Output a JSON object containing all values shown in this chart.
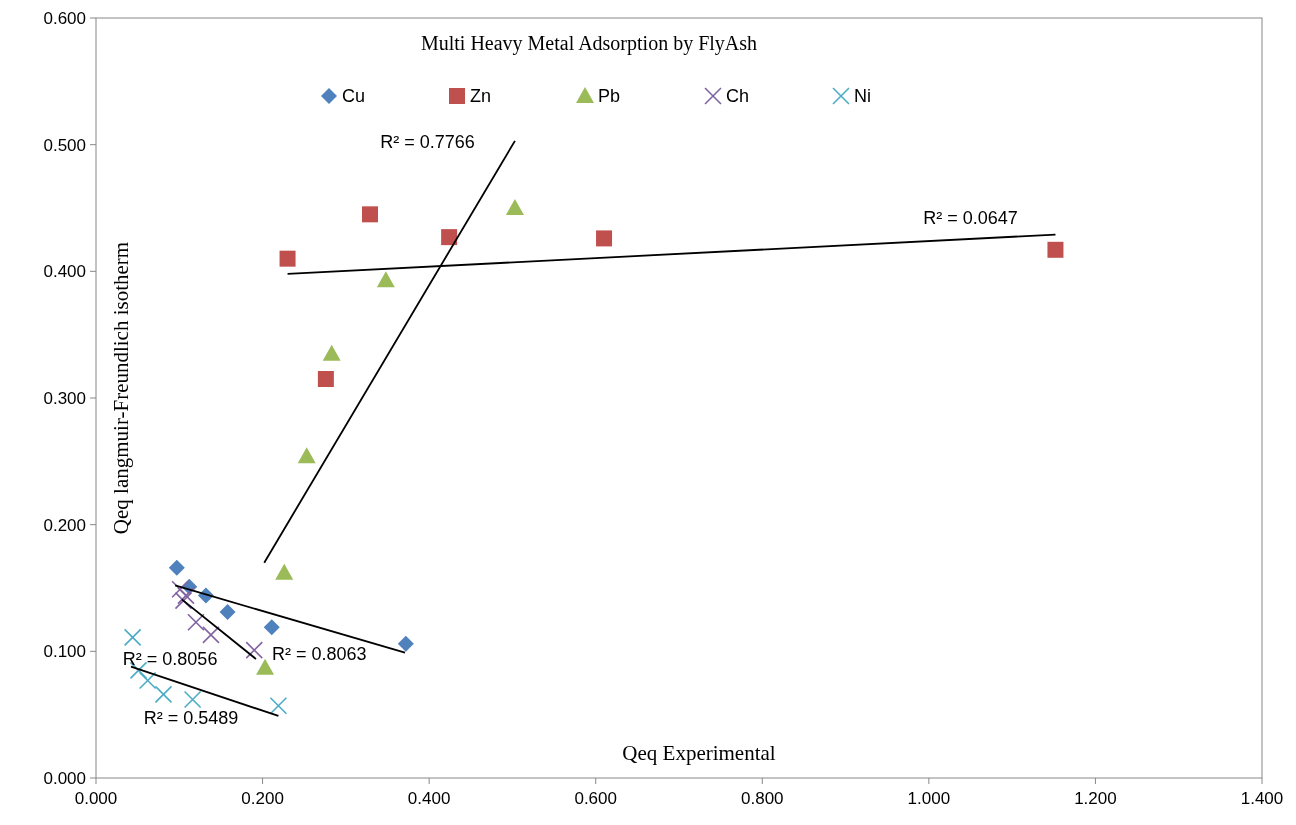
{
  "chart_data": {
    "type": "scatter",
    "title": "Multi Heavy Metal Adsorption by FlyAsh",
    "xlabel": "Qeq Experimental",
    "ylabel": "Qeq langmuir-Freundlich isotherm",
    "xlim": [
      0,
      1.4
    ],
    "ylim": [
      0,
      0.6
    ],
    "xticks": [
      {
        "value": 0,
        "label": "0.000"
      },
      {
        "value": 0.2,
        "label": "0.200"
      },
      {
        "value": 0.4,
        "label": "0.400"
      },
      {
        "value": 0.6,
        "label": "0.600"
      },
      {
        "value": 0.8,
        "label": "0.800"
      },
      {
        "value": 1.0,
        "label": "1.000"
      },
      {
        "value": 1.2,
        "label": "1.200"
      },
      {
        "value": 1.4,
        "label": "1.400"
      }
    ],
    "yticks": [
      {
        "value": 0,
        "label": "0.000"
      },
      {
        "value": 0.1,
        "label": "0.100"
      },
      {
        "value": 0.2,
        "label": "0.200"
      },
      {
        "value": 0.3,
        "label": "0.300"
      },
      {
        "value": 0.4,
        "label": "0.400"
      },
      {
        "value": 0.5,
        "label": "0.500"
      },
      {
        "value": 0.6,
        "label": "0.600"
      }
    ],
    "grid": false,
    "legend": "top",
    "series": [
      {
        "name": "Cu",
        "color": "#4f81bd",
        "marker": "diamond",
        "x": [
          0.097,
          0.112,
          0.132,
          0.158,
          0.211,
          0.372
        ],
        "values": [
          0.166,
          0.151,
          0.144,
          0.131,
          0.119,
          0.106
        ]
      },
      {
        "name": "Zn",
        "color": "#c0504d",
        "marker": "square",
        "x": [
          0.23,
          0.329,
          0.276,
          0.424,
          0.61,
          1.152
        ],
        "values": [
          0.41,
          0.445,
          0.315,
          0.427,
          0.426,
          0.417
        ]
      },
      {
        "name": "Pb",
        "color": "#9bbb59",
        "marker": "triangle",
        "x": [
          0.226,
          0.253,
          0.283,
          0.348,
          0.503,
          0.203
        ],
        "values": [
          0.162,
          0.254,
          0.335,
          0.393,
          0.45,
          0.087
        ]
      },
      {
        "name": "Ch",
        "color": "#8064a2",
        "marker": "cross",
        "x": [
          0.101,
          0.108,
          0.105,
          0.12,
          0.138,
          0.19
        ],
        "values": [
          0.149,
          0.144,
          0.14,
          0.123,
          0.113,
          0.101
        ]
      },
      {
        "name": "Ni",
        "color": "#4bacc6",
        "marker": "cross",
        "x": [
          0.044,
          0.051,
          0.062,
          0.081,
          0.116,
          0.219
        ],
        "values": [
          0.111,
          0.085,
          0.077,
          0.066,
          0.062,
          0.057
        ]
      },
      {
        "type": "line",
        "color": "#000000",
        "marker": "none",
        "x": [
          0.095,
          0.371
        ],
        "values": [
          0.152,
          0.099
        ]
      },
      {
        "type": "line",
        "color": "#000000",
        "marker": "none",
        "x": [
          0.23,
          1.152
        ],
        "values": [
          0.398,
          0.429
        ]
      },
      {
        "type": "line",
        "color": "#000000",
        "marker": "none",
        "x": [
          0.202,
          0.503
        ],
        "values": [
          0.17,
          0.503
        ]
      },
      {
        "type": "line",
        "color": "#000000",
        "marker": "none",
        "x": [
          0.103,
          0.192
        ],
        "values": [
          0.141,
          0.094
        ]
      },
      {
        "type": "line",
        "color": "#000000",
        "marker": "none",
        "x": [
          0.042,
          0.219
        ],
        "values": [
          0.088,
          0.049
        ]
      }
    ],
    "annotations": [
      "R² = 0.7766",
      "R² = 0.0647",
      "R² = 0.8056",
      "R² = 0.8063",
      "R² = 0.5489"
    ]
  }
}
